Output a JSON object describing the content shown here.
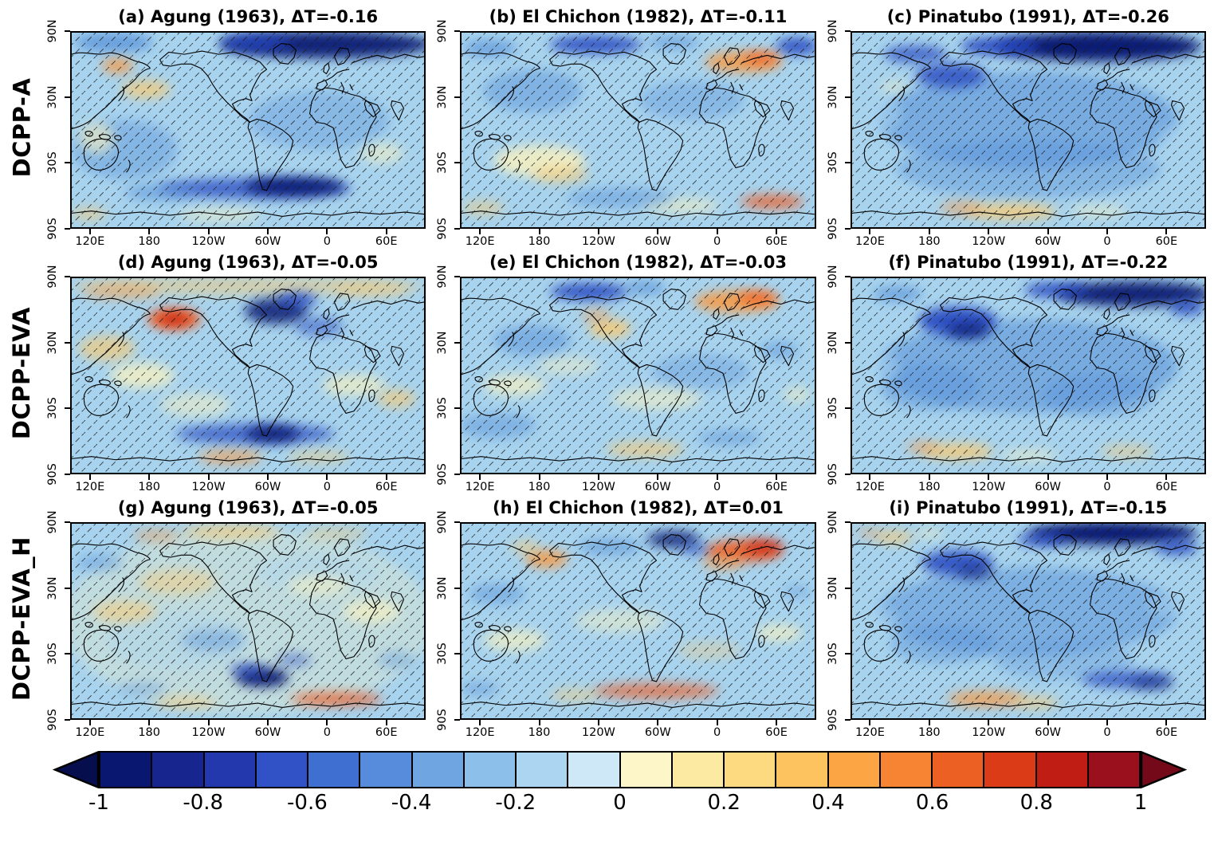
{
  "figure": {
    "rows": [
      {
        "label": "DCPP-A"
      },
      {
        "label": "DCPP-EVA"
      },
      {
        "label": "DCPP-EVA_H"
      }
    ],
    "panels": [
      {
        "id": "a",
        "row": 0,
        "title": "(a) Agung (1963), ΔT=-0.16"
      },
      {
        "id": "b",
        "row": 0,
        "title": "(b) El Chichon (1982), ΔT=-0.11"
      },
      {
        "id": "c",
        "row": 0,
        "title": "(c) Pinatubo (1991), ΔT=-0.26"
      },
      {
        "id": "d",
        "row": 1,
        "title": "(d) Agung (1963), ΔT=-0.05"
      },
      {
        "id": "e",
        "row": 1,
        "title": "(e) El Chichon (1982), ΔT=-0.03"
      },
      {
        "id": "f",
        "row": 1,
        "title": "(f) Pinatubo (1991), ΔT=-0.22"
      },
      {
        "id": "g",
        "row": 2,
        "title": "(g) Agung (1963), ΔT=-0.05"
      },
      {
        "id": "h",
        "row": 2,
        "title": "(h) El Chichon (1982), ΔT=0.01"
      },
      {
        "id": "i",
        "row": 2,
        "title": "(i) Pinatubo (1991), ΔT=-0.15"
      }
    ],
    "x_ticks": [
      "120E",
      "180",
      "120W",
      "60W",
      "0",
      "60E"
    ],
    "y_ticks": [
      "90N",
      "30N",
      "30S",
      "90S"
    ],
    "colorbar": {
      "tick_labels": [
        "-1",
        "-0.8",
        "-0.6",
        "-0.4",
        "-0.2",
        "0",
        "0.2",
        "0.4",
        "0.6",
        "0.8",
        "1"
      ],
      "colors": [
        "#0a1770",
        "#17258f",
        "#2438ae",
        "#3152c6",
        "#406fd2",
        "#568cdb",
        "#6fa6e2",
        "#8cbfe9",
        "#abd5f0",
        "#cfe8f7",
        "#fdf6c8",
        "#fdeaa2",
        "#fdd97f",
        "#fdc35e",
        "#fba545",
        "#f68433",
        "#ec6023",
        "#dc3b18",
        "#c01e14",
        "#9a101c"
      ],
      "arrow_left_color": "#060e4e",
      "arrow_right_color": "#740a19"
    }
  },
  "chart_data": {
    "type": "heatmap",
    "title": "Post-eruption surface temperature anomaly maps for three volcanic eruptions and three model experiments",
    "rows": [
      "DCPP-A",
      "DCPP-EVA",
      "DCPP-EVA_H"
    ],
    "columns": [
      "Agung (1963)",
      "El Chichon (1982)",
      "Pinatubo (1991)"
    ],
    "panels": [
      {
        "id": "a",
        "model": "DCPP-A",
        "eruption": "Agung",
        "year": 1963,
        "delta_T": -0.16
      },
      {
        "id": "b",
        "model": "DCPP-A",
        "eruption": "El Chichon",
        "year": 1982,
        "delta_T": -0.11
      },
      {
        "id": "c",
        "model": "DCPP-A",
        "eruption": "Pinatubo",
        "year": 1991,
        "delta_T": -0.26
      },
      {
        "id": "d",
        "model": "DCPP-EVA",
        "eruption": "Agung",
        "year": 1963,
        "delta_T": -0.05
      },
      {
        "id": "e",
        "model": "DCPP-EVA",
        "eruption": "El Chichon",
        "year": 1982,
        "delta_T": -0.03
      },
      {
        "id": "f",
        "model": "DCPP-EVA",
        "eruption": "Pinatubo",
        "year": 1991,
        "delta_T": -0.22
      },
      {
        "id": "g",
        "model": "DCPP-EVA_H",
        "eruption": "Agung",
        "year": 1963,
        "delta_T": -0.05
      },
      {
        "id": "h",
        "model": "DCPP-EVA_H",
        "eruption": "El Chichon",
        "year": 1982,
        "delta_T": 0.01
      },
      {
        "id": "i",
        "model": "DCPP-EVA_H",
        "eruption": "Pinatubo",
        "year": 1991,
        "delta_T": -0.15
      }
    ],
    "colorbar": {
      "range": [
        -1,
        1
      ],
      "ticks": [
        -1,
        -0.8,
        -0.6,
        -0.4,
        -0.2,
        0,
        0.2,
        0.4,
        0.6,
        0.8,
        1
      ],
      "orientation": "horizontal",
      "extend": "both"
    },
    "x_axis": {
      "tick_labels": [
        "120E",
        "180",
        "120W",
        "60W",
        "0",
        "60E"
      ]
    },
    "y_axis": {
      "tick_labels": [
        "90N",
        "30N",
        "30S",
        "90S"
      ]
    },
    "grid": false,
    "hatching": "diagonal hatching marks statistically insignificant / significance regions covering most of each map"
  }
}
